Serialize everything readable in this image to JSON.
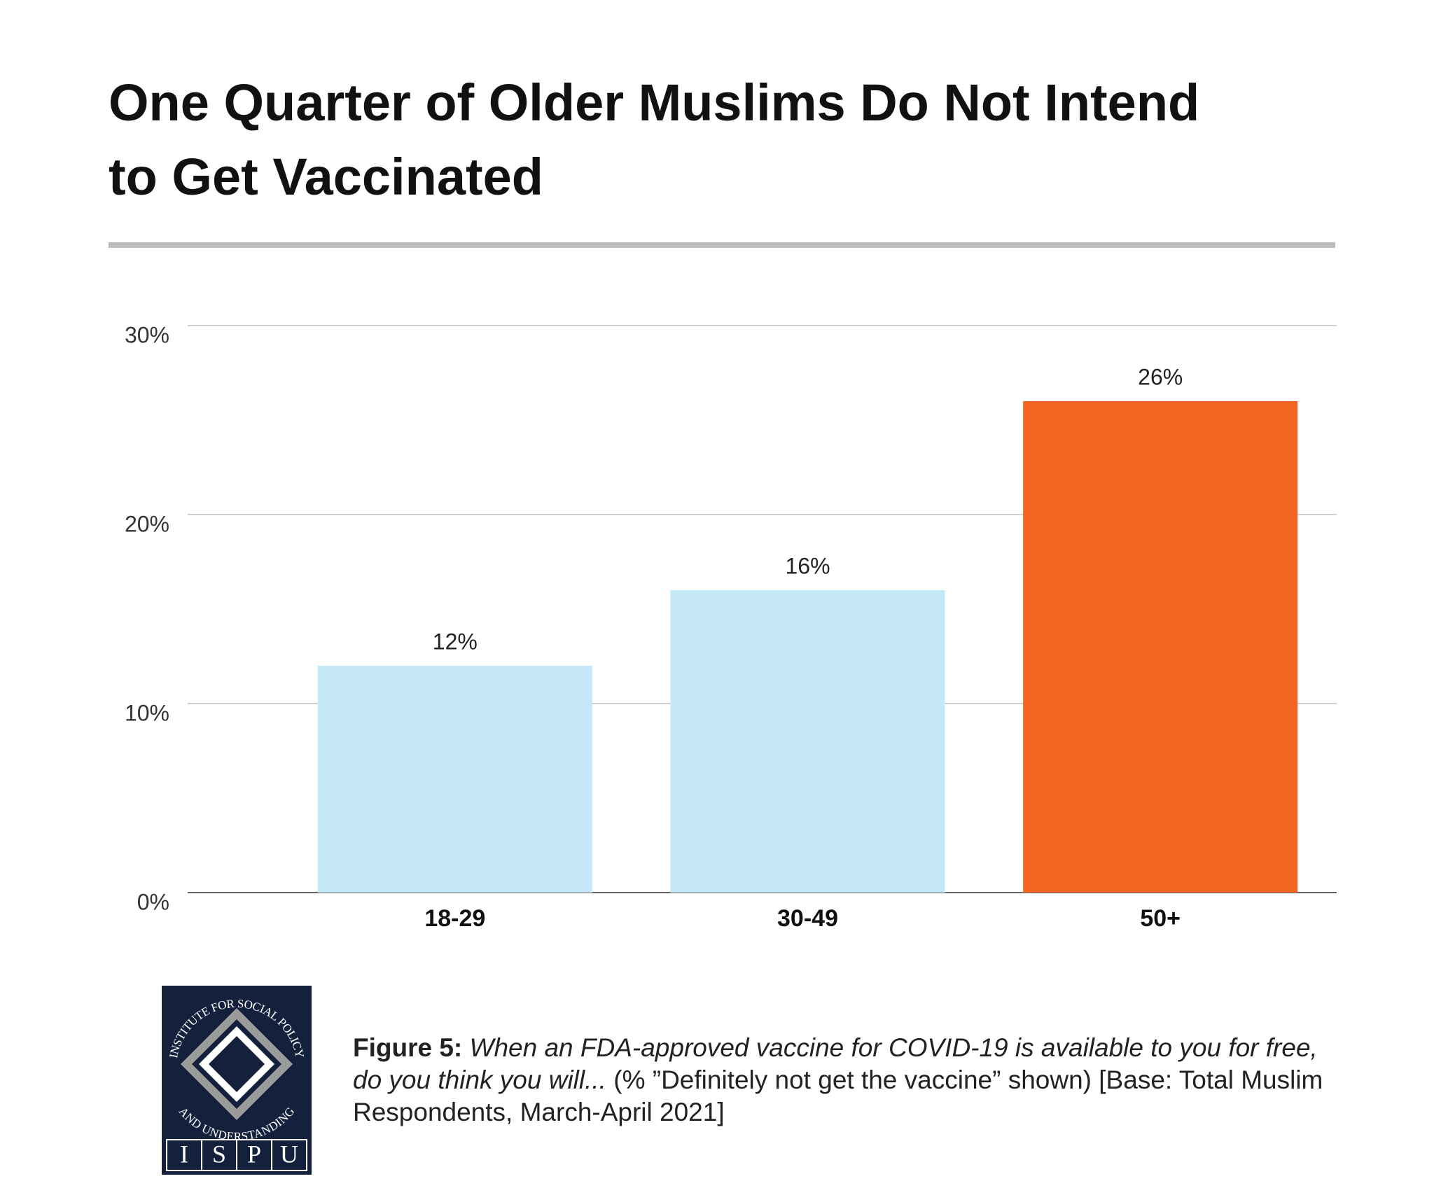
{
  "chart_data": {
    "type": "bar",
    "title": "One Quarter of Older Muslims Do Not Intend to Get Vaccinated",
    "categories": [
      "18-29",
      "30-49",
      "50+"
    ],
    "values": [
      12,
      16,
      26
    ],
    "value_labels": [
      "12%",
      "16%",
      "26%"
    ],
    "colors": [
      "#c5e8f8",
      "#c5e8f8",
      "#f26522"
    ],
    "ylim": [
      0,
      30
    ],
    "yticks": [
      {
        "value": 0,
        "label": "0%"
      },
      {
        "value": 10,
        "label": "10%"
      },
      {
        "value": 20,
        "label": "20%"
      },
      {
        "value": 30,
        "label": "30%"
      }
    ],
    "grid": true
  },
  "caption": {
    "label": "Figure 5:",
    "question": "When an FDA-approved vaccine for COVID-19 is available to you for free, do you think you will...",
    "note": "(% ”Definitely not get the vaccine” shown) [Base: Total Muslim Respondents, March-April 2021]"
  },
  "logo": {
    "ring_top": "INSTITUTE FOR SOCIAL POLICY",
    "ring_bottom": "AND UNDERSTANDING",
    "letters": [
      "I",
      "S",
      "P",
      "U"
    ]
  }
}
